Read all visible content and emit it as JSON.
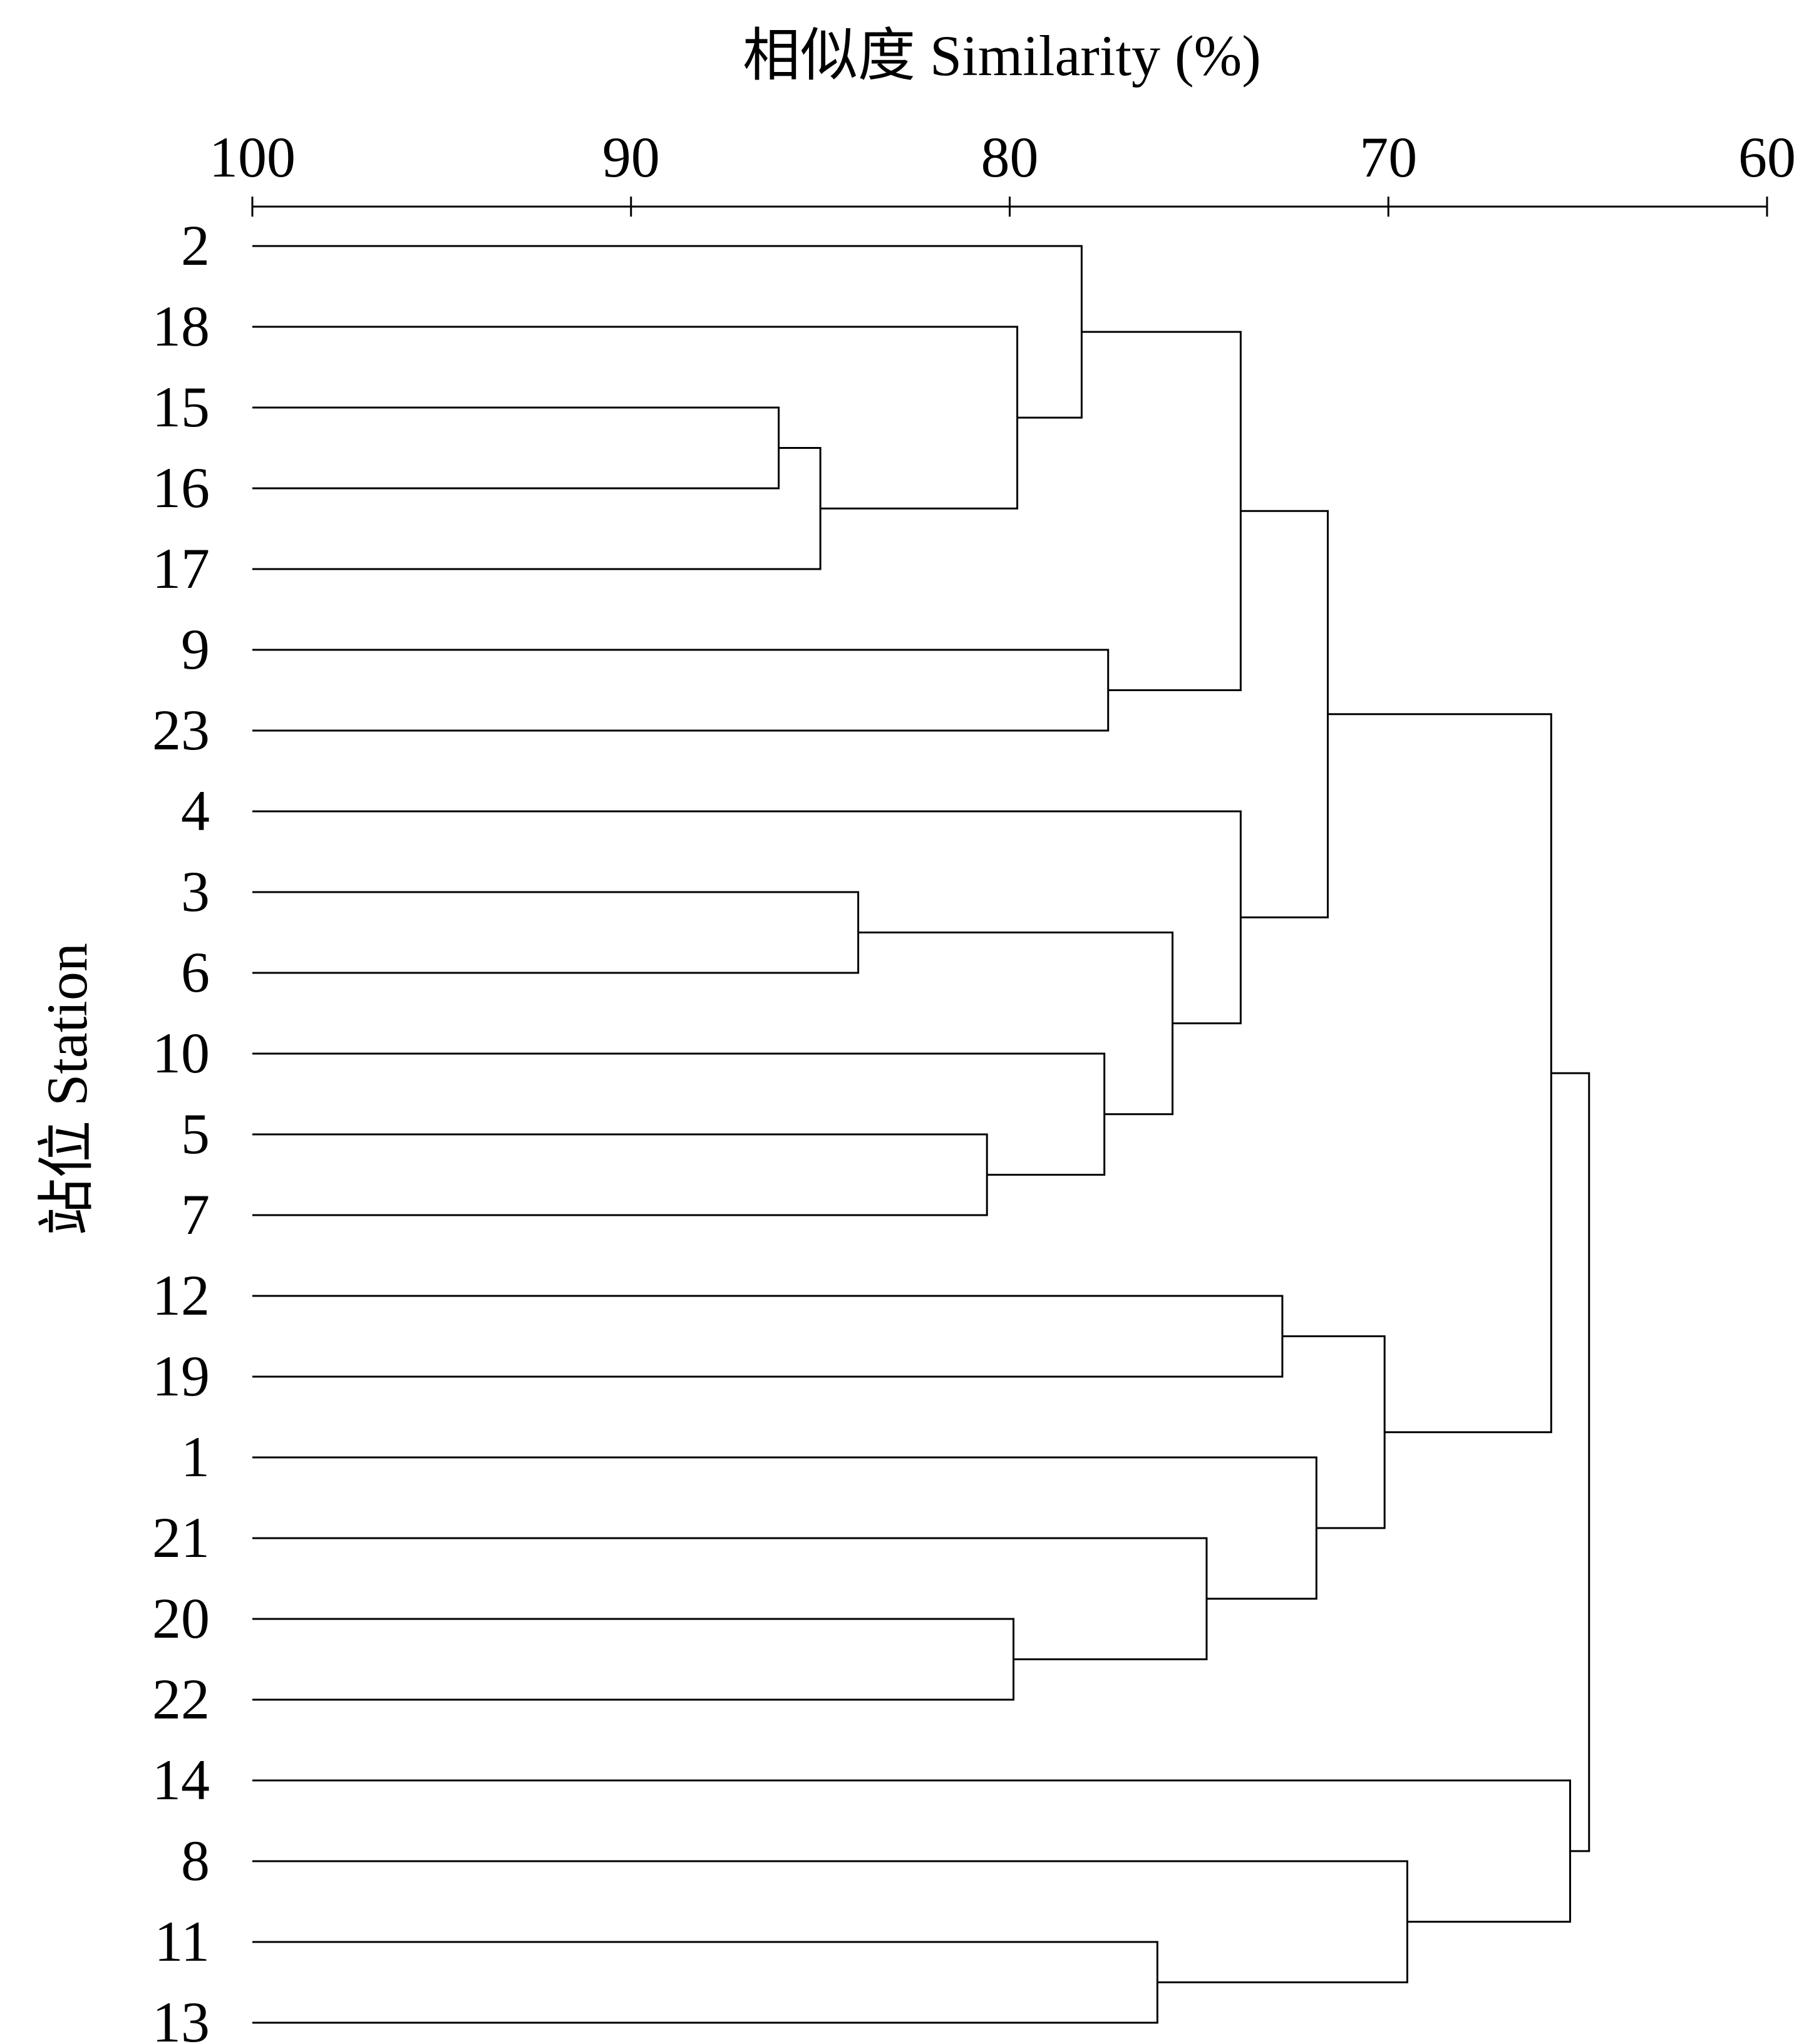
{
  "chart_data": {
    "type": "dendrogram",
    "x_axis": {
      "label": "相似度 Similarity (%)",
      "ticks": [
        100,
        90,
        80,
        70,
        60
      ],
      "range": [
        100,
        60
      ],
      "position": "top"
    },
    "y_axis": {
      "label": "站位 Station"
    },
    "leaves": [
      "2",
      "18",
      "15",
      "16",
      "17",
      "9",
      "23",
      "4",
      "3",
      "6",
      "10",
      "5",
      "7",
      "12",
      "19",
      "1",
      "21",
      "20",
      "22",
      "14",
      "8",
      "11",
      "13"
    ],
    "merges": [
      {
        "a": "15",
        "b": "16",
        "similarity": 86.1
      },
      {
        "a": "3",
        "b": "6",
        "similarity": 84.0
      },
      {
        "a": "(15,16)",
        "b": "17",
        "similarity": 85.0
      },
      {
        "a": "5",
        "b": "7",
        "similarity": 80.6
      },
      {
        "a": "18",
        "b": "(15,16,17)",
        "similarity": 79.8
      },
      {
        "a": "20",
        "b": "22",
        "similarity": 79.9
      },
      {
        "a": "2",
        "b": "(18,15,16,17)",
        "similarity": 78.1
      },
      {
        "a": "9",
        "b": "23",
        "similarity": 77.4
      },
      {
        "a": "10",
        "b": "(5,7)",
        "similarity": 77.5
      },
      {
        "a": "11",
        "b": "13",
        "similarity": 76.1
      },
      {
        "a": "(3,6)",
        "b": "(10,5,7)",
        "similarity": 75.7
      },
      {
        "a": "21",
        "b": "(20,22)",
        "similarity": 74.8
      },
      {
        "a": "(2,18,15,16,17)",
        "b": "(9,23)",
        "similarity": 73.9
      },
      {
        "a": "4",
        "b": "(3,6,10,5,7)",
        "similarity": 73.9
      },
      {
        "a": "12",
        "b": "19",
        "similarity": 72.8
      },
      {
        "a": "1",
        "b": "(21,20,22)",
        "similarity": 71.9
      },
      {
        "a": "(2,...,23)",
        "b": "(4,...,7)",
        "similarity": 71.6
      },
      {
        "a": "(12,19)",
        "b": "(1,21,20,22)",
        "similarity": 70.1
      },
      {
        "a": "8",
        "b": "(11,13)",
        "similarity": 69.5
      },
      {
        "a": "(2,...,7)",
        "b": "(12,...,22)",
        "similarity": 65.7
      },
      {
        "a": "14",
        "b": "(8,11,13)",
        "similarity": 65.2
      },
      {
        "a": "(2,...,22)",
        "b": "(14,8,11,13)",
        "similarity": 64.7
      }
    ],
    "line_color": "#000000",
    "grid": false
  }
}
